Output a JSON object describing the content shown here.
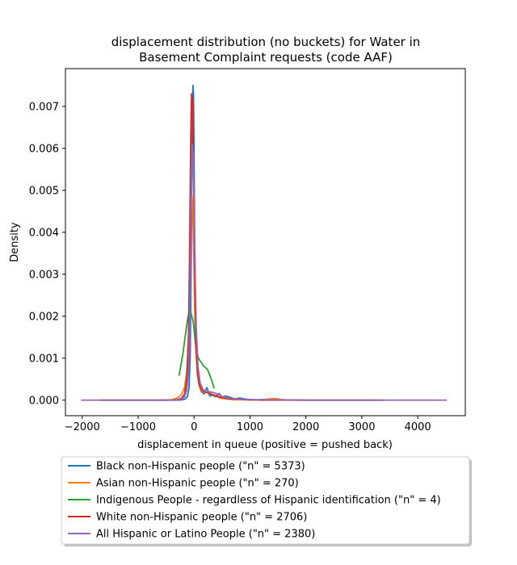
{
  "chart_data": {
    "type": "line",
    "title_line1": "displacement distribution (no buckets)  for Water in",
    "title_line2": "Basement Complaint requests (code AAF)",
    "xlabel": "displacement in queue (positive = pushed back)",
    "ylabel": "Density",
    "xlim": [
      -2300,
      4850
    ],
    "ylim": [
      -0.00037,
      0.0079
    ],
    "xticks": [
      -2000,
      -1000,
      0,
      1000,
      2000,
      3000,
      4000
    ],
    "xtick_labels": [
      "−2000",
      "−1000",
      "0",
      "1000",
      "2000",
      "3000",
      "4000"
    ],
    "yticks": [
      0,
      0.001,
      0.002,
      0.003,
      0.004,
      0.005,
      0.006,
      0.007
    ],
    "ytick_labels": [
      "0.000",
      "0.001",
      "0.002",
      "0.003",
      "0.004",
      "0.005",
      "0.006",
      "0.007"
    ],
    "legend_position": "below",
    "series": [
      {
        "name": "Black non-Hispanic people (\"n\" = 5373)",
        "color": "#1f77b4",
        "points": [
          [
            -1600,
            0
          ],
          [
            -400,
            0
          ],
          [
            -250,
            0
          ],
          [
            -170,
            2e-05
          ],
          [
            -120,
            8e-05
          ],
          [
            -90,
            0.0003
          ],
          [
            -70,
            0.001
          ],
          [
            -50,
            0.0035
          ],
          [
            -35,
            0.0062
          ],
          [
            -20,
            0.0075
          ],
          [
            -10,
            0.0073
          ],
          [
            0,
            0.0058
          ],
          [
            10,
            0.004
          ],
          [
            25,
            0.0022
          ],
          [
            40,
            0.0012
          ],
          [
            60,
            0.0006
          ],
          [
            90,
            0.00035
          ],
          [
            130,
            0.0002
          ],
          [
            180,
            0.00015
          ],
          [
            230,
            0.0003
          ],
          [
            280,
            0.0001
          ],
          [
            330,
            0.00012
          ],
          [
            380,
            8e-05
          ],
          [
            450,
            0.00016
          ],
          [
            500,
            5e-05
          ],
          [
            560,
            0.0001
          ],
          [
            640,
            7e-05
          ],
          [
            720,
            3e-05
          ],
          [
            820,
            5e-05
          ],
          [
            950,
            2e-05
          ],
          [
            1100,
            1e-05
          ],
          [
            1300,
            2e-05
          ],
          [
            1500,
            1e-05
          ],
          [
            2000,
            0
          ],
          [
            3000,
            0
          ],
          [
            3400,
            0
          ]
        ]
      },
      {
        "name": "Asian non-Hispanic people (\"n\" = 270)",
        "color": "#ff7f0e",
        "points": [
          [
            -1700,
            0
          ],
          [
            -600,
            0
          ],
          [
            -400,
            1e-05
          ],
          [
            -300,
            5e-05
          ],
          [
            -230,
            0.00013
          ],
          [
            -170,
            0.0003
          ],
          [
            -130,
            0.0007
          ],
          [
            -100,
            0.0015
          ],
          [
            -75,
            0.003
          ],
          [
            -55,
            0.0044
          ],
          [
            -40,
            0.0049
          ],
          [
            -25,
            0.0047
          ],
          [
            -10,
            0.0037
          ],
          [
            10,
            0.0022
          ],
          [
            30,
            0.0012
          ],
          [
            60,
            0.0006
          ],
          [
            100,
            0.0003
          ],
          [
            140,
            0.0002
          ],
          [
            200,
            0.00018
          ],
          [
            260,
            0.0002
          ],
          [
            320,
            0.00014
          ],
          [
            380,
            0.0001
          ],
          [
            460,
            5e-05
          ],
          [
            560,
            3e-05
          ],
          [
            700,
            1e-05
          ],
          [
            850,
            1e-05
          ],
          [
            1000,
            0
          ],
          [
            1200,
            1e-05
          ],
          [
            1350,
            3e-05
          ],
          [
            1450,
            4e-05
          ],
          [
            1550,
            2e-05
          ],
          [
            1700,
            0
          ],
          [
            2300,
            0
          ],
          [
            3400,
            0
          ]
        ]
      },
      {
        "name": "Indigenous People - regardless of Hispanic identification (\"n\" = 4)",
        "color": "#2ca02c",
        "points": [
          [
            -270,
            0.00058
          ],
          [
            -240,
            0.0008
          ],
          [
            -200,
            0.0011
          ],
          [
            -160,
            0.0015
          ],
          [
            -120,
            0.0019
          ],
          [
            -90,
            0.0021
          ],
          [
            -60,
            0.0021
          ],
          [
            -40,
            0.002
          ],
          [
            -20,
            0.0019
          ],
          [
            0,
            0.0017
          ],
          [
            20,
            0.0014
          ],
          [
            40,
            0.0012
          ],
          [
            60,
            0.0011
          ],
          [
            80,
            0.001
          ],
          [
            100,
            0.00095
          ],
          [
            130,
            0.0009
          ],
          [
            160,
            0.00083
          ],
          [
            200,
            0.00078
          ],
          [
            240,
            0.00073
          ],
          [
            280,
            0.0006
          ],
          [
            320,
            0.00045
          ],
          [
            360,
            0.00028
          ]
        ]
      },
      {
        "name": "White non-Hispanic people (\"n\" = 2706)",
        "color": "#d62728",
        "points": [
          [
            -1700,
            0
          ],
          [
            -500,
            0
          ],
          [
            -300,
            1e-05
          ],
          [
            -220,
            5e-05
          ],
          [
            -170,
            0.00015
          ],
          [
            -130,
            0.0005
          ],
          [
            -100,
            0.0015
          ],
          [
            -80,
            0.0035
          ],
          [
            -60,
            0.0062
          ],
          [
            -45,
            0.0073
          ],
          [
            -30,
            0.0071
          ],
          [
            -15,
            0.006
          ],
          [
            0,
            0.0044
          ],
          [
            15,
            0.0027
          ],
          [
            35,
            0.0014
          ],
          [
            60,
            0.0007
          ],
          [
            90,
            0.0004
          ],
          [
            130,
            0.00025
          ],
          [
            180,
            0.0002
          ],
          [
            230,
            0.00018
          ],
          [
            290,
            0.00015
          ],
          [
            360,
            0.00012
          ],
          [
            440,
            8e-05
          ],
          [
            540,
            5e-05
          ],
          [
            650,
            3e-05
          ],
          [
            800,
            2e-05
          ],
          [
            1000,
            1e-05
          ],
          [
            1200,
            0
          ],
          [
            2000,
            0
          ],
          [
            3300,
            0
          ]
        ]
      },
      {
        "name": "All Hispanic or Latino People (\"n\" = 2380)",
        "color": "#9467bd",
        "points": [
          [
            -2020,
            0
          ],
          [
            -600,
            0
          ],
          [
            -350,
            0
          ],
          [
            -230,
            2e-05
          ],
          [
            -170,
            8e-05
          ],
          [
            -130,
            0.00025
          ],
          [
            -100,
            0.0007
          ],
          [
            -80,
            0.0018
          ],
          [
            -60,
            0.0038
          ],
          [
            -45,
            0.0054
          ],
          [
            -30,
            0.0061
          ],
          [
            -15,
            0.0058
          ],
          [
            0,
            0.0047
          ],
          [
            20,
            0.003
          ],
          [
            40,
            0.0017
          ],
          [
            70,
            0.0008
          ],
          [
            110,
            0.0004
          ],
          [
            160,
            0.00025
          ],
          [
            220,
            0.0002
          ],
          [
            280,
            0.0002
          ],
          [
            350,
            0.00018
          ],
          [
            420,
            0.00015
          ],
          [
            500,
            9e-05
          ],
          [
            600,
            5e-05
          ],
          [
            750,
            3e-05
          ],
          [
            900,
            2e-05
          ],
          [
            1100,
            1e-05
          ],
          [
            1400,
            1e-05
          ],
          [
            2000,
            0
          ],
          [
            3000,
            0
          ],
          [
            4520,
            0
          ]
        ]
      }
    ]
  }
}
